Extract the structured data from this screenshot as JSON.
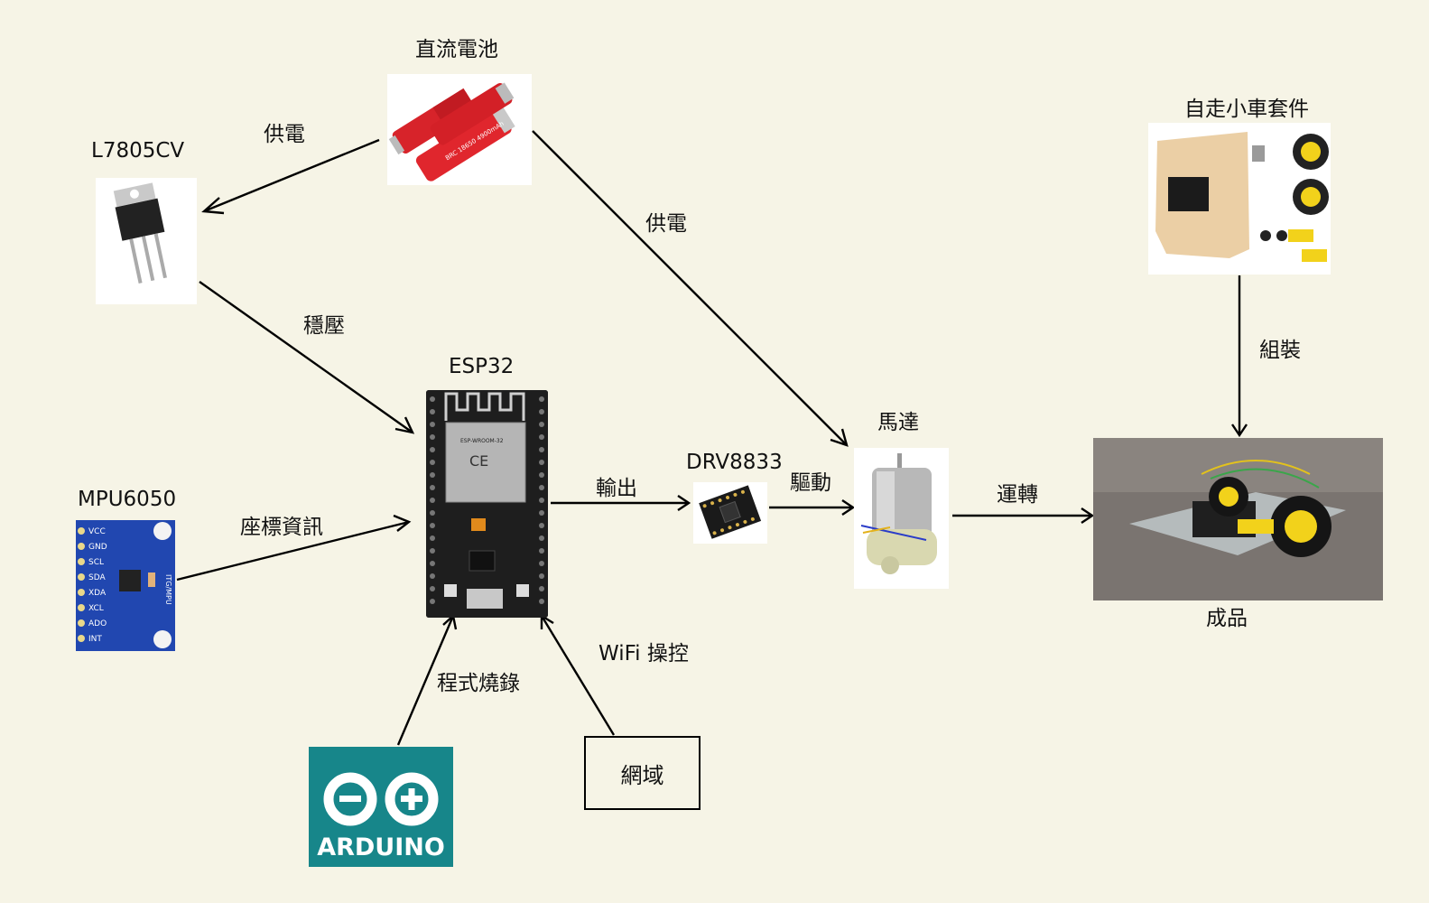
{
  "nodes": {
    "battery": "直流電池",
    "regulator": "L7805CV",
    "esp32": "ESP32",
    "mpu": "MPU6050",
    "driver": "DRV8833",
    "motor": "馬達",
    "kit": "自走小車套件",
    "product": "成品",
    "network": "網域",
    "arduino": "ARDUINO"
  },
  "edges": {
    "battery_to_regulator": "供電",
    "battery_to_motor": "供電",
    "regulator_to_esp32": "穩壓",
    "mpu_to_esp32": "座標資訊",
    "esp32_to_driver": "輸出",
    "driver_to_motor": "驅動",
    "motor_to_product": "運轉",
    "kit_to_product": "組裝",
    "arduino_to_esp32": "程式燒錄",
    "network_to_esp32": "WiFi 操控"
  },
  "pictures": {
    "battery_text": "BRC 18650 4900mAh",
    "esp32_module_text": "ESP-WROOM-32",
    "mpu_pins": [
      "VCC",
      "GND",
      "SCL",
      "SDA",
      "XDA",
      "XCL",
      "ADO",
      "INT"
    ],
    "mpu_side_text": "ITG/MPU"
  }
}
